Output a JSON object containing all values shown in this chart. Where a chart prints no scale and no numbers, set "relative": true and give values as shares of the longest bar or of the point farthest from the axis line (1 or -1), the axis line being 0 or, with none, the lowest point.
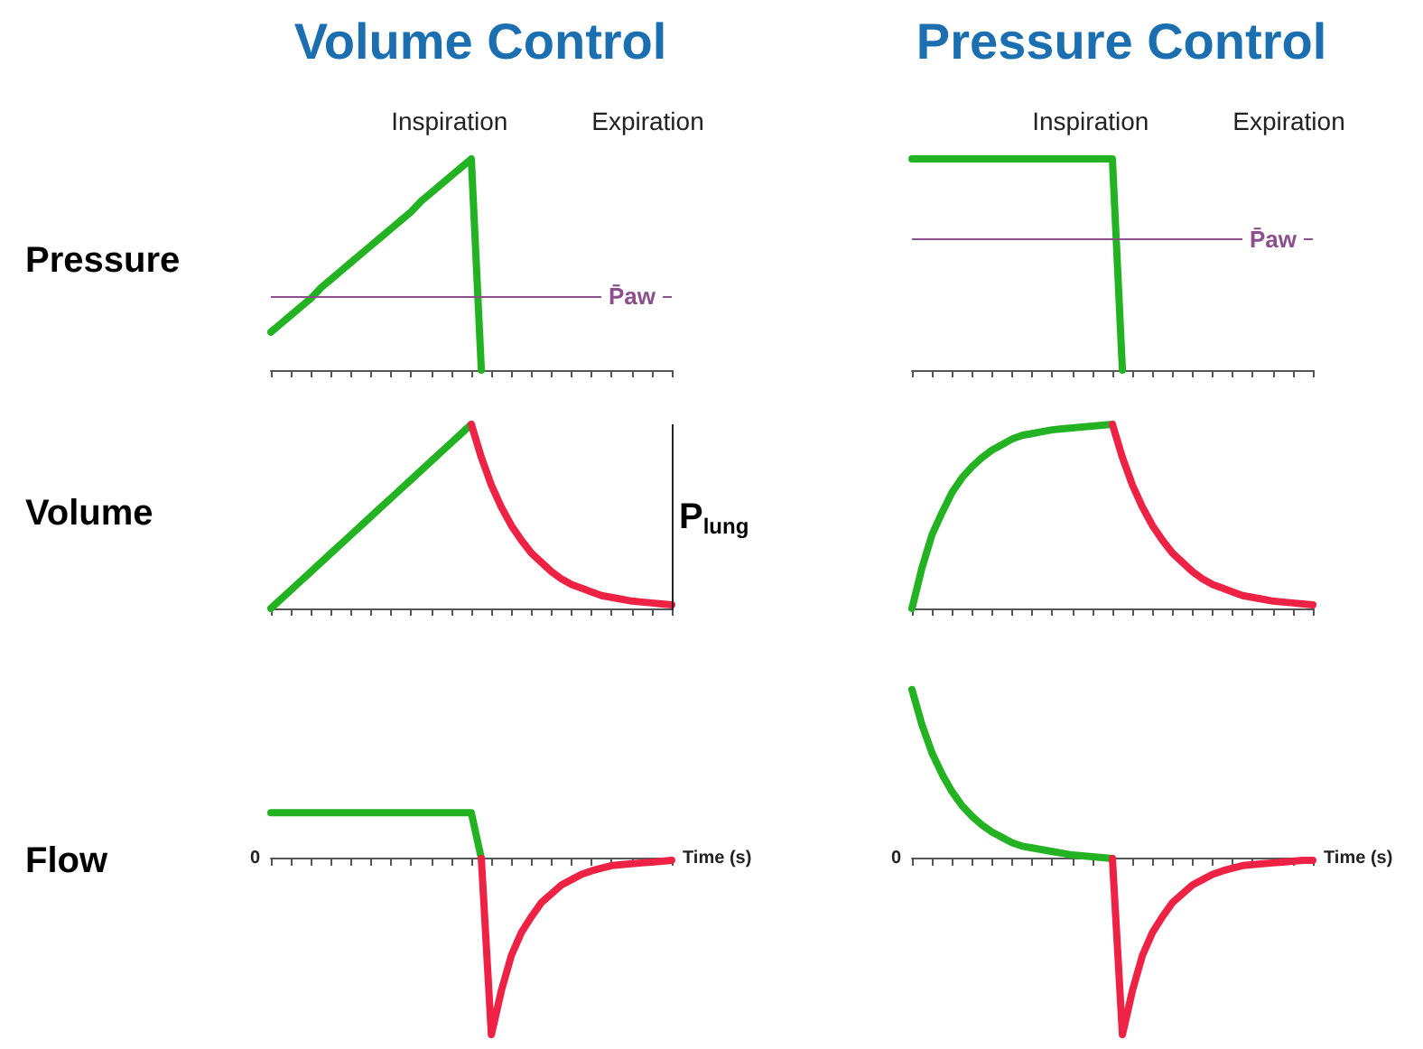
{
  "chart_data": [
    {
      "type": "line",
      "relative": true,
      "title": "Volume Control",
      "ylabel": "Pressure",
      "annotations": [
        "Inspiration",
        "Expiration"
      ],
      "categories": [
        null,
        null,
        null,
        null,
        null,
        null,
        null,
        null,
        null,
        null,
        null,
        null,
        null,
        null,
        null,
        null,
        null,
        null,
        null,
        null,
        null,
        null,
        null,
        null,
        null,
        null,
        null,
        null,
        null,
        null,
        null,
        null,
        null,
        null,
        null,
        null,
        null,
        null,
        null,
        null,
        null
      ],
      "marker": "none",
      "ref_lines": [
        {
          "axis": "y",
          "value": 0.35,
          "label": "P̄aw",
          "color": "#8b4f8b"
        }
      ],
      "series": [
        {
          "color": "#22b222",
          "values": [
            0.18,
            0.22,
            0.26,
            0.3,
            0.34,
            0.39,
            0.43,
            0.47,
            0.51,
            0.55,
            0.59,
            0.63,
            0.67,
            0.71,
            0.75,
            0.8,
            0.84,
            0.88,
            0.92,
            0.96,
            1,
            0,
            null,
            null,
            null,
            null,
            null,
            null,
            null,
            null,
            null,
            null,
            null,
            null,
            null,
            null,
            null,
            null,
            null,
            null,
            null
          ]
        }
      ]
    },
    {
      "type": "line",
      "relative": true,
      "title": "Pressure Control",
      "annotations": [
        "Inspiration",
        "Expiration"
      ],
      "categories": [
        null,
        null,
        null,
        null,
        null,
        null,
        null,
        null,
        null,
        null,
        null,
        null,
        null,
        null,
        null,
        null,
        null,
        null,
        null,
        null,
        null,
        null,
        null,
        null,
        null,
        null,
        null,
        null,
        null,
        null,
        null,
        null,
        null,
        null,
        null,
        null,
        null,
        null,
        null,
        null,
        null
      ],
      "marker": "none",
      "ref_lines": [
        {
          "axis": "y",
          "value": 0.62,
          "label": "P̄aw",
          "color": "#8b4f8b"
        }
      ],
      "series": [
        {
          "color": "#22b222",
          "values": [
            1,
            1,
            1,
            1,
            1,
            1,
            1,
            1,
            1,
            1,
            1,
            1,
            1,
            1,
            1,
            1,
            1,
            1,
            1,
            1,
            1,
            0,
            null,
            null,
            null,
            null,
            null,
            null,
            null,
            null,
            null,
            null,
            null,
            null,
            null,
            null,
            null,
            null,
            null,
            null,
            null
          ]
        }
      ]
    },
    {
      "type": "line",
      "relative": true,
      "ylabel": "Volume",
      "annotations": [
        "P$_{lung}$"
      ],
      "categories": [
        null,
        null,
        null,
        null,
        null,
        null,
        null,
        null,
        null,
        null,
        null,
        null,
        null,
        null,
        null,
        null,
        null,
        null,
        null,
        null,
        null,
        null,
        null,
        null,
        null,
        null,
        null,
        null,
        null,
        null,
        null,
        null,
        null,
        null,
        null,
        null,
        null,
        null,
        null,
        null,
        null
      ],
      "marker": "none",
      "series": [
        {
          "color": "#22b222",
          "values": [
            0,
            0.05,
            0.1,
            0.15,
            0.2,
            0.25,
            0.3,
            0.35,
            0.4,
            0.45,
            0.5,
            0.55,
            0.6,
            0.65,
            0.7,
            0.75,
            0.8,
            0.85,
            0.9,
            0.95,
            1,
            null,
            null,
            null,
            null,
            null,
            null,
            null,
            null,
            null,
            null,
            null,
            null,
            null,
            null,
            null,
            null,
            null,
            null,
            null,
            null
          ]
        },
        {
          "color": "#ee2244",
          "values": [
            null,
            null,
            null,
            null,
            null,
            null,
            null,
            null,
            null,
            null,
            null,
            null,
            null,
            null,
            null,
            null,
            null,
            null,
            null,
            null,
            1,
            0.82,
            0.67,
            0.55,
            0.45,
            0.37,
            0.3,
            0.25,
            0.2,
            0.16,
            0.13,
            0.11,
            0.09,
            0.07,
            0.06,
            0.05,
            0.04,
            0.035,
            0.03,
            0.025,
            0.02
          ]
        }
      ]
    },
    {
      "type": "line",
      "relative": true,
      "categories": [
        null,
        null,
        null,
        null,
        null,
        null,
        null,
        null,
        null,
        null,
        null,
        null,
        null,
        null,
        null,
        null,
        null,
        null,
        null,
        null,
        null,
        null,
        null,
        null,
        null,
        null,
        null,
        null,
        null,
        null,
        null,
        null,
        null,
        null,
        null,
        null,
        null,
        null,
        null,
        null,
        null
      ],
      "marker": "none",
      "series": [
        {
          "color": "#22b222",
          "values": [
            0,
            0.22,
            0.4,
            0.52,
            0.63,
            0.71,
            0.77,
            0.82,
            0.86,
            0.89,
            0.92,
            0.94,
            0.95,
            0.96,
            0.97,
            0.975,
            0.98,
            0.985,
            0.99,
            0.995,
            1,
            null,
            null,
            null,
            null,
            null,
            null,
            null,
            null,
            null,
            null,
            null,
            null,
            null,
            null,
            null,
            null,
            null,
            null,
            null,
            null
          ]
        },
        {
          "color": "#ee2244",
          "values": [
            null,
            null,
            null,
            null,
            null,
            null,
            null,
            null,
            null,
            null,
            null,
            null,
            null,
            null,
            null,
            null,
            null,
            null,
            null,
            null,
            1,
            0.82,
            0.67,
            0.55,
            0.45,
            0.37,
            0.3,
            0.25,
            0.2,
            0.16,
            0.13,
            0.11,
            0.09,
            0.07,
            0.06,
            0.05,
            0.04,
            0.035,
            0.03,
            0.025,
            0.02
          ]
        }
      ]
    },
    {
      "type": "line",
      "relative": true,
      "ylabel": "Flow",
      "xlabel": "Time (s)",
      "annotations": [
        "0"
      ],
      "categories": [
        null,
        null,
        null,
        null,
        null,
        null,
        null,
        null,
        null,
        null,
        null,
        null,
        null,
        null,
        null,
        null,
        null,
        null,
        null,
        null,
        null,
        null,
        null,
        null,
        null,
        null,
        null,
        null,
        null,
        null,
        null,
        null,
        null,
        null,
        null,
        null,
        null,
        null,
        null,
        null,
        null
      ],
      "marker": "none",
      "series": [
        {
          "color": "#22b222",
          "values": [
            0.26,
            0.26,
            0.26,
            0.26,
            0.26,
            0.26,
            0.26,
            0.26,
            0.26,
            0.26,
            0.26,
            0.26,
            0.26,
            0.26,
            0.26,
            0.26,
            0.26,
            0.26,
            0.26,
            0.26,
            0.26,
            0,
            null,
            null,
            null,
            null,
            null,
            null,
            null,
            null,
            null,
            null,
            null,
            null,
            null,
            null,
            null,
            null,
            null,
            null,
            null
          ]
        },
        {
          "color": "#ee2244",
          "values": [
            null,
            null,
            null,
            null,
            null,
            null,
            null,
            null,
            null,
            null,
            null,
            null,
            null,
            null,
            null,
            null,
            null,
            null,
            null,
            null,
            null,
            0,
            -1,
            -0.75,
            -0.55,
            -0.42,
            -0.33,
            -0.25,
            -0.2,
            -0.15,
            -0.12,
            -0.09,
            -0.07,
            -0.055,
            -0.04,
            -0.035,
            -0.03,
            -0.025,
            -0.02,
            -0.015,
            -0.01
          ]
        }
      ]
    },
    {
      "type": "line",
      "relative": true,
      "xlabel": "Time (s)",
      "annotations": [
        "0"
      ],
      "categories": [
        null,
        null,
        null,
        null,
        null,
        null,
        null,
        null,
        null,
        null,
        null,
        null,
        null,
        null,
        null,
        null,
        null,
        null,
        null,
        null,
        null,
        null,
        null,
        null,
        null,
        null,
        null,
        null,
        null,
        null,
        null,
        null,
        null,
        null,
        null,
        null,
        null,
        null,
        null,
        null,
        null
      ],
      "marker": "none",
      "series": [
        {
          "color": "#22b222",
          "values": [
            0.96,
            0.76,
            0.6,
            0.48,
            0.38,
            0.3,
            0.24,
            0.19,
            0.15,
            0.12,
            0.09,
            0.07,
            0.06,
            0.05,
            0.04,
            0.03,
            0.02,
            0.015,
            0.01,
            0.005,
            0,
            null,
            null,
            null,
            null,
            null,
            null,
            null,
            null,
            null,
            null,
            null,
            null,
            null,
            null,
            null,
            null,
            null,
            null,
            null,
            null
          ]
        },
        {
          "color": "#ee2244",
          "values": [
            null,
            null,
            null,
            null,
            null,
            null,
            null,
            null,
            null,
            null,
            null,
            null,
            null,
            null,
            null,
            null,
            null,
            null,
            null,
            null,
            0,
            -1,
            -0.75,
            -0.55,
            -0.42,
            -0.33,
            -0.25,
            -0.2,
            -0.15,
            -0.12,
            -0.09,
            -0.07,
            -0.055,
            -0.04,
            -0.035,
            -0.03,
            -0.025,
            -0.02,
            -0.015,
            -0.01,
            -0.01
          ]
        }
      ]
    }
  ]
}
